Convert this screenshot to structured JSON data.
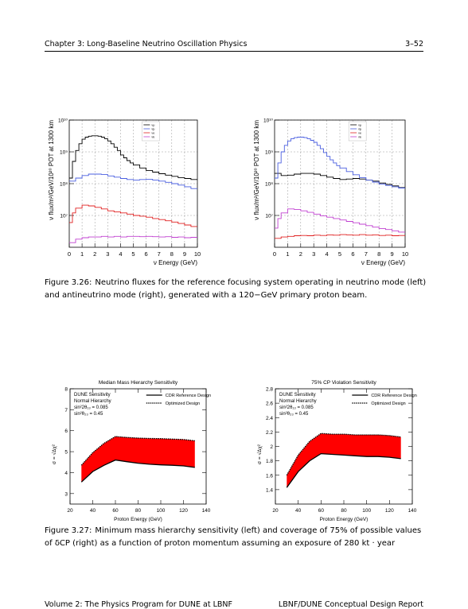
{
  "header": {
    "chapter": "Chapter 3: Long-Baseline Neutrino Oscillation Physics",
    "page": "3–52"
  },
  "footer": {
    "left": "Volume 2: The Physics Program for DUNE at LBNF",
    "right": "LBNF/DUNE Conceptual Design Report"
  },
  "fig326": {
    "label": "Figure 3.26:",
    "text": "Neutrino fluxes for the reference focusing system operating in neutrino mode (left) and antineutrino mode (right), generated with a 120−GeV primary proton beam."
  },
  "fig327": {
    "label": "Figure 3.27:",
    "text": "Minimum mass hierarchy sensitivity (left) and coverage of 75% of possible values of δCP (right) as a function of proton momentum assuming an exposure of 280 kt · year"
  },
  "chart_data": [
    {
      "type": "line",
      "panel": "flux-left",
      "xlabel": "ν Energy (GeV)",
      "ylabel": "ν flux/m²/GeV/10²⁰ POT at 1300 km",
      "xlim": [
        0,
        10
      ],
      "ylog": true,
      "ylim_exp": [
        6,
        10
      ],
      "xticks": [
        "0",
        "1",
        "2",
        "3",
        "4",
        "5",
        "6",
        "7",
        "8",
        "9",
        "10"
      ],
      "yticks": [
        {
          "exp": 7,
          "label": "10⁷"
        },
        {
          "exp": 8,
          "label": "10⁸"
        },
        {
          "exp": 9,
          "label": "10⁹"
        },
        {
          "exp": 10,
          "label": "10¹⁰"
        }
      ],
      "legend": [
        "νμ",
        "ν̄μ",
        "νe",
        "ν̄e"
      ],
      "grid": true,
      "series": [
        {
          "name": "νμ",
          "color": "#000000",
          "x": [
            0,
            0.25,
            0.5,
            0.75,
            1,
            1.25,
            1.5,
            1.75,
            2,
            2.25,
            2.5,
            2.75,
            3,
            3.25,
            3.5,
            3.75,
            4,
            4.25,
            4.5,
            4.75,
            5,
            5.5,
            6,
            6.5,
            7,
            7.5,
            8,
            8.5,
            9,
            9.5,
            10
          ],
          "y": [
            150000000.0,
            500000000.0,
            1100000000.0,
            1800000000.0,
            2500000000.0,
            2900000000.0,
            3100000000.0,
            3200000000.0,
            3200000000.0,
            3100000000.0,
            2900000000.0,
            2600000000.0,
            2200000000.0,
            1800000000.0,
            1400000000.0,
            1100000000.0,
            800000000.0,
            650000000.0,
            530000000.0,
            450000000.0,
            390000000.0,
            310000000.0,
            260000000.0,
            230000000.0,
            205000000.0,
            185000000.0,
            170000000.0,
            155000000.0,
            145000000.0,
            135000000.0,
            125000000.0
          ]
        },
        {
          "name": "ν̄μ",
          "color": "#4a5fe0",
          "x": [
            0,
            0.5,
            1,
            1.5,
            2,
            2.5,
            3,
            3.5,
            4,
            4.5,
            5,
            5.5,
            6,
            6.5,
            7,
            7.5,
            8,
            8.5,
            9,
            9.5,
            10
          ],
          "y": [
            120000000.0,
            150000000.0,
            180000000.0,
            200000000.0,
            200000000.0,
            195000000.0,
            175000000.0,
            160000000.0,
            145000000.0,
            135000000.0,
            130000000.0,
            135000000.0,
            138000000.0,
            130000000.0,
            120000000.0,
            110000000.0,
            100000000.0,
            90000000.0,
            80000000.0,
            70000000.0,
            60000000.0
          ]
        },
        {
          "name": "νe",
          "color": "#e02020",
          "x": [
            0,
            0.25,
            0.5,
            1,
            1.5,
            2,
            2.5,
            3,
            3.5,
            4,
            4.5,
            5,
            5.5,
            6,
            6.5,
            7,
            7.5,
            8,
            8.5,
            9,
            9.5,
            10
          ],
          "y": [
            6000000.0,
            12000000.0,
            17000000.0,
            21000000.0,
            20000000.0,
            18000000.0,
            16000000.0,
            14000000.0,
            13000000.0,
            12000000.0,
            11000000.0,
            10000000.0,
            9500000.0,
            8800000.0,
            8000000.0,
            7400000.0,
            6800000.0,
            6200000.0,
            5600000.0,
            5000000.0,
            4500000.0,
            4000000.0
          ]
        },
        {
          "name": "ν̄e",
          "color": "#c040d0",
          "x": [
            0,
            0.5,
            1,
            1.5,
            2,
            2.5,
            3,
            3.5,
            4,
            4.5,
            5,
            5.5,
            6,
            6.5,
            7,
            7.5,
            8,
            8.5,
            9,
            9.5,
            10
          ],
          "y": [
            1400000.0,
            1800000.0,
            2000000.0,
            2100000.0,
            2100000.0,
            2200000.0,
            2100000.0,
            2200000.0,
            2100000.0,
            2200000.0,
            2200000.0,
            2150000.0,
            2200000.0,
            2150000.0,
            2100000.0,
            2150000.0,
            2050000.0,
            2100000.0,
            2000000.0,
            2050000.0,
            1950000.0
          ]
        }
      ]
    },
    {
      "type": "line",
      "panel": "flux-right",
      "xlabel": "ν Energy (GeV)",
      "ylabel": "ν flux/m²/GeV/10²⁰ POT at 1300 km",
      "xlim": [
        0,
        10
      ],
      "ylog": true,
      "ylim_exp": [
        6,
        10
      ],
      "xticks": [
        "0",
        "1",
        "2",
        "3",
        "4",
        "5",
        "6",
        "7",
        "8",
        "9",
        "10"
      ],
      "yticks": [
        {
          "exp": 7,
          "label": "10⁷"
        },
        {
          "exp": 8,
          "label": "10⁸"
        },
        {
          "exp": 9,
          "label": "10⁹"
        },
        {
          "exp": 10,
          "label": "10¹⁰"
        }
      ],
      "legend": [
        "νμ",
        "ν̄μ",
        "νe",
        "ν̄e"
      ],
      "grid": true,
      "series": [
        {
          "name": "νμ",
          "color": "#000000",
          "x": [
            0,
            0.5,
            1,
            1.5,
            2,
            2.5,
            3,
            3.5,
            4,
            4.5,
            5,
            5.5,
            6,
            6.5,
            7,
            7.5,
            8,
            8.5,
            9,
            9.5,
            10
          ],
          "y": [
            210000000.0,
            180000000.0,
            185000000.0,
            200000000.0,
            210000000.0,
            210000000.0,
            200000000.0,
            180000000.0,
            160000000.0,
            145000000.0,
            135000000.0,
            140000000.0,
            145000000.0,
            140000000.0,
            130000000.0,
            120000000.0,
            105000000.0,
            95000000.0,
            85000000.0,
            75000000.0,
            65000000.0
          ]
        },
        {
          "name": "ν̄μ",
          "color": "#4a5fe0",
          "x": [
            0,
            0.25,
            0.5,
            0.75,
            1,
            1.25,
            1.5,
            1.75,
            2,
            2.25,
            2.5,
            2.75,
            3,
            3.25,
            3.5,
            3.75,
            4,
            4.25,
            4.5,
            4.75,
            5,
            5.5,
            6,
            6.5,
            7,
            7.5,
            8,
            8.5,
            9,
            9.5,
            10
          ],
          "y": [
            150000000.0,
            450000000.0,
            1000000000.0,
            1600000000.0,
            2200000000.0,
            2600000000.0,
            2800000000.0,
            2900000000.0,
            2900000000.0,
            2800000000.0,
            2600000000.0,
            2300000000.0,
            2000000000.0,
            1600000000.0,
            1250000000.0,
            950000000.0,
            720000000.0,
            560000000.0,
            450000000.0,
            370000000.0,
            310000000.0,
            240000000.0,
            190000000.0,
            155000000.0,
            130000000.0,
            112000000.0,
            98000000.0,
            88000000.0,
            80000000.0,
            73000000.0,
            66000000.0
          ]
        },
        {
          "name": "νe",
          "color": "#e02020",
          "x": [
            0,
            0.5,
            1,
            1.5,
            2,
            2.5,
            3,
            3.5,
            4,
            4.5,
            5,
            5.5,
            6,
            6.5,
            7,
            7.5,
            8,
            8.5,
            9,
            9.5,
            10
          ],
          "y": [
            1900000.0,
            2100000.0,
            2200000.0,
            2300000.0,
            2350000.0,
            2300000.0,
            2400000.0,
            2350000.0,
            2450000.0,
            2400000.0,
            2500000.0,
            2450000.0,
            2400000.0,
            2500000.0,
            2400000.0,
            2450000.0,
            2350000.0,
            2400000.0,
            2300000.0,
            2350000.0,
            2250000.0
          ]
        },
        {
          "name": "ν̄e",
          "color": "#c040d0",
          "x": [
            0,
            0.25,
            0.5,
            1,
            1.5,
            2,
            2.5,
            3,
            3.5,
            4,
            4.5,
            5,
            5.5,
            6,
            6.5,
            7,
            7.5,
            8,
            8.5,
            9,
            9.5,
            10
          ],
          "y": [
            4000000.0,
            8000000.0,
            12000000.0,
            16000000.0,
            15500000.0,
            14000000.0,
            12500000.0,
            11000000.0,
            9800000.0,
            8800000.0,
            8000000.0,
            7200000.0,
            6500000.0,
            5900000.0,
            5300000.0,
            4800000.0,
            4300000.0,
            3900000.0,
            3600000.0,
            3300000.0,
            3000000.0,
            2800000.0
          ]
        }
      ]
    },
    {
      "type": "area",
      "panel": "mh",
      "title": "Median Mass Hierarchy Sensitivity",
      "xlabel": "Proton Energy (GeV)",
      "ylabel": "σ = √Δχ²",
      "xlim": [
        20,
        140
      ],
      "ylim": [
        2.5,
        8
      ],
      "xticks": [
        20,
        40,
        60,
        80,
        100,
        120,
        140
      ],
      "yticks": [
        3,
        4,
        5,
        6,
        7,
        8
      ],
      "text_lines": [
        "DUNE Sensitivity",
        "Normal Hierarchy",
        "sin²2θ₁₃ = 0.085",
        "sin²θ₂₃ = 0.45"
      ],
      "legend": [
        "CDR Reference Design",
        "Optimized Design"
      ],
      "series": [
        {
          "name": "CDR Reference Design",
          "x": [
            30,
            40,
            50,
            60,
            70,
            80,
            90,
            100,
            110,
            120,
            130
          ],
          "y": [
            3.55,
            4.05,
            4.35,
            4.6,
            4.52,
            4.45,
            4.4,
            4.37,
            4.35,
            4.32,
            4.25
          ]
        },
        {
          "name": "Optimized Design",
          "x": [
            30,
            40,
            50,
            60,
            70,
            80,
            90,
            100,
            110,
            120,
            130
          ],
          "y": [
            4.35,
            4.95,
            5.4,
            5.72,
            5.68,
            5.65,
            5.63,
            5.62,
            5.6,
            5.58,
            5.52
          ]
        }
      ]
    },
    {
      "type": "area",
      "panel": "cp",
      "title": "75% CP Violation Sensitivity",
      "xlabel": "Proton Energy (GeV)",
      "ylabel": "σ = √Δχ²",
      "xlim": [
        20,
        140
      ],
      "ylim": [
        1.2,
        2.8
      ],
      "xticks": [
        20,
        40,
        60,
        80,
        100,
        120,
        140
      ],
      "yticks": [
        1.4,
        1.6,
        1.8,
        2,
        2.2,
        2.4,
        2.6,
        2.8
      ],
      "text_lines": [
        "DUNE Sensitivity",
        "Normal Hierarchy",
        "sin²2θ₁₃ = 0.085",
        "sin²θ₂₃ = 0.45"
      ],
      "legend": [
        "CDR Reference Design",
        "Optimized Design"
      ],
      "series": [
        {
          "name": "CDR Reference Design",
          "x": [
            30,
            40,
            50,
            60,
            70,
            80,
            90,
            100,
            110,
            120,
            130
          ],
          "y": [
            1.43,
            1.65,
            1.8,
            1.9,
            1.89,
            1.88,
            1.87,
            1.86,
            1.86,
            1.85,
            1.83
          ]
        },
        {
          "name": "Optimized Design",
          "x": [
            30,
            40,
            50,
            60,
            70,
            80,
            90,
            100,
            110,
            120,
            130
          ],
          "y": [
            1.6,
            1.88,
            2.07,
            2.18,
            2.17,
            2.17,
            2.16,
            2.16,
            2.16,
            2.15,
            2.13
          ]
        }
      ]
    }
  ]
}
